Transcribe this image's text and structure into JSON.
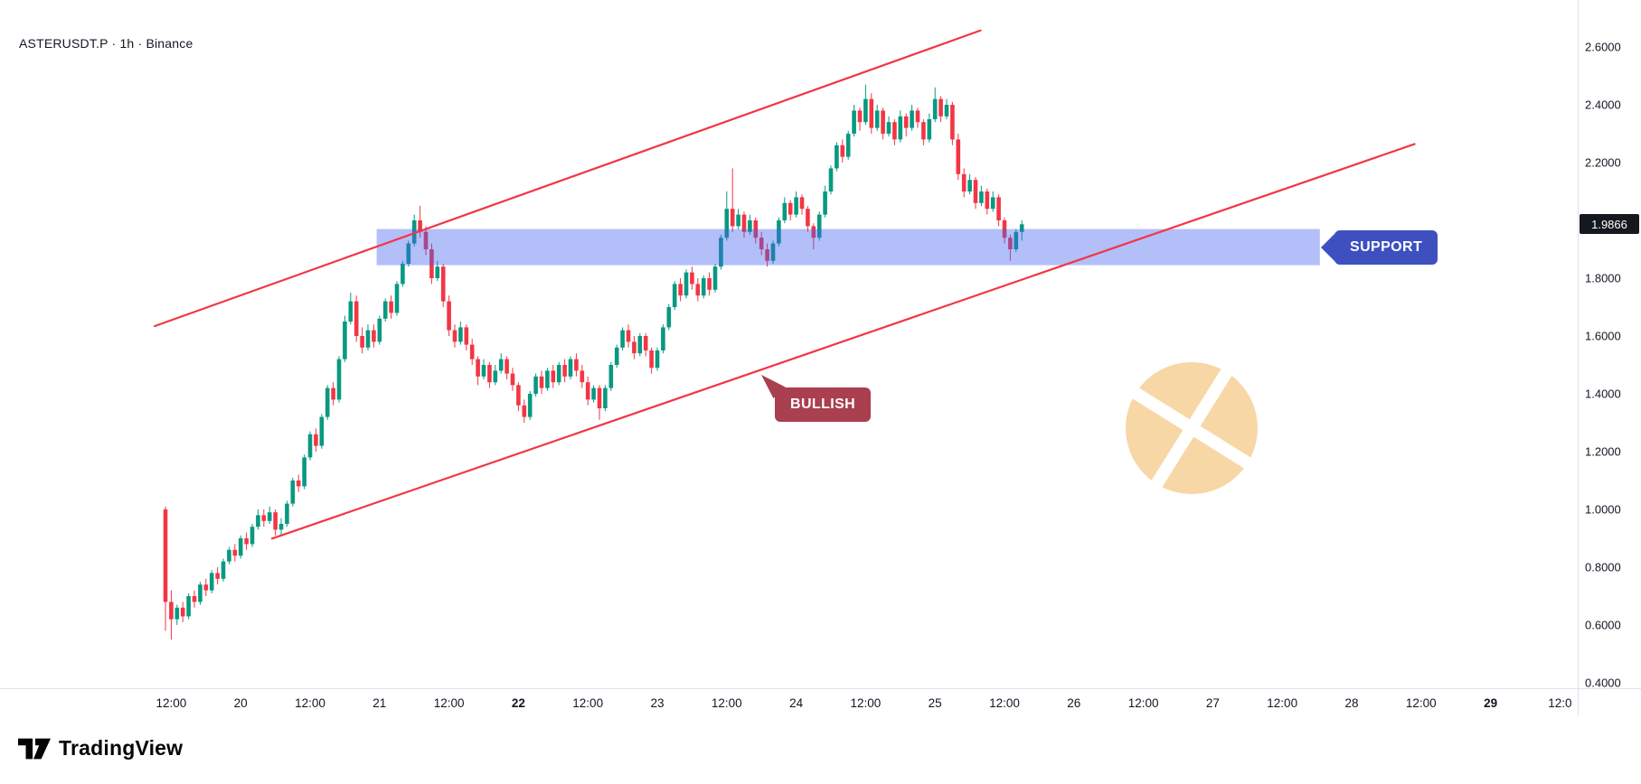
{
  "header": {
    "symbol_title": "ASTERUSDT.P · 1h · Binance"
  },
  "annotations": {
    "support_label": "SUPPORT",
    "bullish_label": "BULLISH"
  },
  "footer": {
    "brand": "TradingView"
  },
  "colors": {
    "up": "#089981",
    "down": "#F23645",
    "trendline": "#F23645",
    "zone_fill": "rgba(62,94,240,0.40)",
    "support_box": "#3E50C0",
    "bullish_box": "#A93F4F",
    "last_price_tag_bg": "#15181E",
    "watermark": "#F7D7A6",
    "axis_text": "#131722"
  },
  "price_axis": {
    "last_price_label": "1.9866",
    "labels": [
      {
        "v": 2.6,
        "text": "2.6000"
      },
      {
        "v": 2.4,
        "text": "2.4000"
      },
      {
        "v": 2.2,
        "text": "2.2000"
      },
      {
        "v": 1.8,
        "text": "1.8000"
      },
      {
        "v": 1.6,
        "text": "1.6000"
      },
      {
        "v": 1.4,
        "text": "1.4000"
      },
      {
        "v": 1.2,
        "text": "1.2000"
      },
      {
        "v": 1.0,
        "text": "1.0000"
      },
      {
        "v": 0.8,
        "text": "0.8000"
      },
      {
        "v": 0.6,
        "text": "0.6000"
      },
      {
        "v": 0.4,
        "text": "0.4000"
      }
    ]
  },
  "time_axis": {
    "ticks": [
      {
        "t": 1,
        "label": "12:00",
        "bold": false
      },
      {
        "t": 13,
        "label": "20",
        "bold": false
      },
      {
        "t": 25,
        "label": "12:00",
        "bold": false
      },
      {
        "t": 37,
        "label": "21",
        "bold": false
      },
      {
        "t": 49,
        "label": "12:00",
        "bold": false
      },
      {
        "t": 61,
        "label": "22",
        "bold": true
      },
      {
        "t": 73,
        "label": "12:00",
        "bold": false
      },
      {
        "t": 85,
        "label": "23",
        "bold": false
      },
      {
        "t": 97,
        "label": "12:00",
        "bold": false
      },
      {
        "t": 109,
        "label": "24",
        "bold": false
      },
      {
        "t": 121,
        "label": "12:00",
        "bold": false
      },
      {
        "t": 133,
        "label": "25",
        "bold": false
      },
      {
        "t": 145,
        "label": "12:00",
        "bold": false
      },
      {
        "t": 157,
        "label": "26",
        "bold": false
      },
      {
        "t": 169,
        "label": "12:00",
        "bold": false
      },
      {
        "t": 181,
        "label": "27",
        "bold": false
      },
      {
        "t": 193,
        "label": "12:00",
        "bold": false
      },
      {
        "t": 205,
        "label": "28",
        "bold": false
      },
      {
        "t": 217,
        "label": "12:00",
        "bold": false
      },
      {
        "t": 229,
        "label": "29",
        "bold": true
      },
      {
        "t": 241,
        "label": "12:0",
        "bold": false
      }
    ]
  },
  "chart_data": {
    "type": "candlestick",
    "title": "ASTERUSDT.P · 1h · Binance",
    "symbol": "ASTERUSDT.P",
    "interval": "1h",
    "exchange": "Binance",
    "xlabel": "",
    "ylabel": "",
    "ylim": [
      0.4,
      2.6
    ],
    "grid": "off",
    "legend": "none",
    "last_price": 1.9866,
    "support_zone": {
      "t_start": 36.5,
      "t_end": 199.5,
      "price_top": 1.97,
      "price_bottom": 1.845
    },
    "trendlines": [
      {
        "name": "channel-upper",
        "t1": -2,
        "p1": 1.633,
        "t2": 141,
        "p2": 2.658
      },
      {
        "name": "channel-lower",
        "t1": 18.3,
        "p1": 0.898,
        "t2": 216,
        "p2": 2.265
      }
    ],
    "ohlc": [
      [
        1.0,
        1.01,
        0.58,
        0.68
      ],
      [
        0.68,
        0.72,
        0.55,
        0.62
      ],
      [
        0.62,
        0.67,
        0.6,
        0.66
      ],
      [
        0.66,
        0.68,
        0.61,
        0.63
      ],
      [
        0.63,
        0.71,
        0.62,
        0.7
      ],
      [
        0.7,
        0.72,
        0.66,
        0.68
      ],
      [
        0.68,
        0.75,
        0.67,
        0.74
      ],
      [
        0.74,
        0.76,
        0.7,
        0.72
      ],
      [
        0.72,
        0.79,
        0.71,
        0.78
      ],
      [
        0.78,
        0.8,
        0.74,
        0.76
      ],
      [
        0.76,
        0.83,
        0.75,
        0.82
      ],
      [
        0.82,
        0.87,
        0.81,
        0.86
      ],
      [
        0.86,
        0.88,
        0.82,
        0.84
      ],
      [
        0.84,
        0.91,
        0.83,
        0.9
      ],
      [
        0.9,
        0.92,
        0.86,
        0.88
      ],
      [
        0.88,
        0.95,
        0.87,
        0.94
      ],
      [
        0.94,
        1.0,
        0.93,
        0.98
      ],
      [
        0.98,
        1.0,
        0.94,
        0.96
      ],
      [
        0.96,
        1.01,
        0.95,
        0.99
      ],
      [
        0.99,
        1.0,
        0.91,
        0.93
      ],
      [
        0.93,
        0.97,
        0.91,
        0.95
      ],
      [
        0.95,
        1.03,
        0.94,
        1.02
      ],
      [
        1.02,
        1.11,
        1.01,
        1.1
      ],
      [
        1.1,
        1.12,
        1.06,
        1.08
      ],
      [
        1.08,
        1.19,
        1.07,
        1.18
      ],
      [
        1.18,
        1.27,
        1.17,
        1.26
      ],
      [
        1.26,
        1.28,
        1.2,
        1.22
      ],
      [
        1.22,
        1.33,
        1.21,
        1.32
      ],
      [
        1.32,
        1.43,
        1.31,
        1.42
      ],
      [
        1.42,
        1.44,
        1.36,
        1.38
      ],
      [
        1.38,
        1.53,
        1.37,
        1.52
      ],
      [
        1.52,
        1.67,
        1.51,
        1.65
      ],
      [
        1.65,
        1.75,
        1.64,
        1.72
      ],
      [
        1.72,
        1.74,
        1.58,
        1.6
      ],
      [
        1.6,
        1.63,
        1.54,
        1.56
      ],
      [
        1.56,
        1.64,
        1.55,
        1.62
      ],
      [
        1.62,
        1.64,
        1.56,
        1.58
      ],
      [
        1.58,
        1.67,
        1.57,
        1.66
      ],
      [
        1.66,
        1.73,
        1.65,
        1.72
      ],
      [
        1.72,
        1.74,
        1.66,
        1.68
      ],
      [
        1.68,
        1.79,
        1.67,
        1.78
      ],
      [
        1.78,
        1.86,
        1.77,
        1.85
      ],
      [
        1.85,
        1.93,
        1.84,
        1.92
      ],
      [
        1.92,
        2.02,
        1.91,
        2.0
      ],
      [
        2.0,
        2.05,
        1.94,
        1.96
      ],
      [
        1.96,
        1.98,
        1.88,
        1.9
      ],
      [
        1.9,
        1.92,
        1.78,
        1.8
      ],
      [
        1.8,
        1.86,
        1.79,
        1.84
      ],
      [
        1.84,
        1.85,
        1.7,
        1.72
      ],
      [
        1.72,
        1.74,
        1.6,
        1.62
      ],
      [
        1.62,
        1.64,
        1.56,
        1.58
      ],
      [
        1.58,
        1.65,
        1.57,
        1.63
      ],
      [
        1.63,
        1.64,
        1.55,
        1.57
      ],
      [
        1.57,
        1.59,
        1.5,
        1.52
      ],
      [
        1.52,
        1.53,
        1.43,
        1.46
      ],
      [
        1.46,
        1.52,
        1.45,
        1.5
      ],
      [
        1.5,
        1.51,
        1.42,
        1.44
      ],
      [
        1.44,
        1.5,
        1.43,
        1.48
      ],
      [
        1.48,
        1.54,
        1.47,
        1.52
      ],
      [
        1.52,
        1.53,
        1.45,
        1.47
      ],
      [
        1.47,
        1.49,
        1.41,
        1.43
      ],
      [
        1.43,
        1.44,
        1.34,
        1.36
      ],
      [
        1.36,
        1.38,
        1.3,
        1.32
      ],
      [
        1.32,
        1.41,
        1.31,
        1.4
      ],
      [
        1.4,
        1.47,
        1.39,
        1.46
      ],
      [
        1.46,
        1.48,
        1.4,
        1.42
      ],
      [
        1.42,
        1.49,
        1.41,
        1.48
      ],
      [
        1.48,
        1.5,
        1.42,
        1.44
      ],
      [
        1.44,
        1.51,
        1.43,
        1.5
      ],
      [
        1.5,
        1.52,
        1.44,
        1.46
      ],
      [
        1.46,
        1.53,
        1.45,
        1.52
      ],
      [
        1.52,
        1.54,
        1.46,
        1.48
      ],
      [
        1.48,
        1.5,
        1.42,
        1.44
      ],
      [
        1.44,
        1.46,
        1.36,
        1.38
      ],
      [
        1.38,
        1.43,
        1.37,
        1.42
      ],
      [
        1.42,
        1.43,
        1.31,
        1.35
      ],
      [
        1.35,
        1.43,
        1.34,
        1.42
      ],
      [
        1.42,
        1.51,
        1.41,
        1.5
      ],
      [
        1.5,
        1.57,
        1.49,
        1.56
      ],
      [
        1.56,
        1.63,
        1.55,
        1.62
      ],
      [
        1.62,
        1.64,
        1.56,
        1.58
      ],
      [
        1.58,
        1.6,
        1.52,
        1.54
      ],
      [
        1.54,
        1.61,
        1.53,
        1.6
      ],
      [
        1.6,
        1.61,
        1.53,
        1.55
      ],
      [
        1.55,
        1.56,
        1.47,
        1.49
      ],
      [
        1.49,
        1.56,
        1.48,
        1.55
      ],
      [
        1.55,
        1.64,
        1.54,
        1.63
      ],
      [
        1.63,
        1.71,
        1.62,
        1.7
      ],
      [
        1.7,
        1.79,
        1.69,
        1.78
      ],
      [
        1.78,
        1.8,
        1.72,
        1.74
      ],
      [
        1.74,
        1.83,
        1.73,
        1.82
      ],
      [
        1.82,
        1.84,
        1.76,
        1.78
      ],
      [
        1.78,
        1.8,
        1.72,
        1.74
      ],
      [
        1.74,
        1.81,
        1.73,
        1.8
      ],
      [
        1.8,
        1.82,
        1.74,
        1.76
      ],
      [
        1.76,
        1.85,
        1.75,
        1.84
      ],
      [
        1.84,
        1.95,
        1.83,
        1.94
      ],
      [
        1.94,
        2.1,
        1.93,
        2.04
      ],
      [
        2.04,
        2.18,
        1.96,
        1.98
      ],
      [
        1.98,
        2.04,
        1.97,
        2.02
      ],
      [
        2.02,
        2.03,
        1.94,
        1.96
      ],
      [
        1.96,
        2.02,
        1.95,
        2.0
      ],
      [
        2.0,
        2.01,
        1.92,
        1.94
      ],
      [
        1.94,
        1.96,
        1.88,
        1.9
      ],
      [
        1.9,
        1.92,
        1.84,
        1.86
      ],
      [
        1.86,
        1.93,
        1.85,
        1.92
      ],
      [
        1.92,
        2.01,
        1.91,
        2.0
      ],
      [
        2.0,
        2.08,
        1.99,
        2.06
      ],
      [
        2.06,
        2.07,
        2.0,
        2.02
      ],
      [
        2.02,
        2.1,
        2.01,
        2.08
      ],
      [
        2.08,
        2.09,
        2.02,
        2.04
      ],
      [
        2.04,
        2.05,
        1.96,
        1.98
      ],
      [
        1.98,
        1.99,
        1.9,
        1.94
      ],
      [
        1.94,
        2.03,
        1.93,
        2.02
      ],
      [
        2.02,
        2.12,
        2.01,
        2.1
      ],
      [
        2.1,
        2.19,
        2.09,
        2.18
      ],
      [
        2.18,
        2.27,
        2.17,
        2.26
      ],
      [
        2.26,
        2.28,
        2.2,
        2.22
      ],
      [
        2.22,
        2.31,
        2.21,
        2.3
      ],
      [
        2.3,
        2.4,
        2.29,
        2.38
      ],
      [
        2.38,
        2.39,
        2.31,
        2.34
      ],
      [
        2.34,
        2.47,
        2.33,
        2.42
      ],
      [
        2.42,
        2.44,
        2.3,
        2.32
      ],
      [
        2.32,
        2.4,
        2.31,
        2.38
      ],
      [
        2.38,
        2.39,
        2.28,
        2.3
      ],
      [
        2.3,
        2.36,
        2.29,
        2.34
      ],
      [
        2.34,
        2.35,
        2.26,
        2.28
      ],
      [
        2.28,
        2.38,
        2.27,
        2.36
      ],
      [
        2.36,
        2.37,
        2.29,
        2.32
      ],
      [
        2.32,
        2.4,
        2.31,
        2.38
      ],
      [
        2.38,
        2.39,
        2.32,
        2.34
      ],
      [
        2.34,
        2.35,
        2.26,
        2.28
      ],
      [
        2.28,
        2.37,
        2.27,
        2.35
      ],
      [
        2.35,
        2.46,
        2.34,
        2.42
      ],
      [
        2.42,
        2.43,
        2.34,
        2.36
      ],
      [
        2.36,
        2.42,
        2.35,
        2.4
      ],
      [
        2.4,
        2.41,
        2.26,
        2.28
      ],
      [
        2.28,
        2.3,
        2.14,
        2.16
      ],
      [
        2.16,
        2.18,
        2.08,
        2.1
      ],
      [
        2.1,
        2.16,
        2.09,
        2.14
      ],
      [
        2.14,
        2.15,
        2.04,
        2.06
      ],
      [
        2.06,
        2.12,
        2.05,
        2.1
      ],
      [
        2.1,
        2.11,
        2.02,
        2.04
      ],
      [
        2.04,
        2.1,
        2.03,
        2.08
      ],
      [
        2.08,
        2.09,
        1.98,
        2.0
      ],
      [
        2.0,
        2.01,
        1.92,
        1.94
      ],
      [
        1.94,
        1.95,
        1.86,
        1.9
      ],
      [
        1.9,
        1.97,
        1.89,
        1.96
      ],
      [
        1.96,
        2.0,
        1.93,
        1.9866
      ]
    ]
  }
}
